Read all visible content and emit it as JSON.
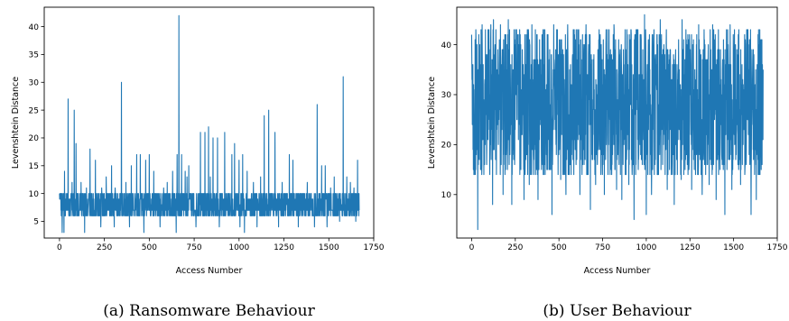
{
  "chart_data": [
    {
      "type": "line",
      "caption": "(a) Ransomware Behaviour",
      "xlabel": "Access Number",
      "ylabel": "Levenshtein Distance",
      "xlim": [
        -85,
        1750
      ],
      "ylim": [
        2.0,
        43.5
      ],
      "xticks": [
        0,
        250,
        500,
        750,
        1000,
        1250,
        1500,
        1750
      ],
      "yticks": [
        5,
        10,
        15,
        20,
        25,
        30,
        35,
        40
      ],
      "color": "#1f77b4",
      "series": [
        {
          "n_points": 1670,
          "band": [
            6,
            10
          ],
          "spikes": [
            [
              3,
              10
            ],
            [
              15,
              3
            ],
            [
              28,
              14
            ],
            [
              48,
              27
            ],
            [
              70,
              12
            ],
            [
              82,
              25
            ],
            [
              92,
              19
            ],
            [
              120,
              12
            ],
            [
              150,
              11
            ],
            [
              170,
              18
            ],
            [
              200,
              16
            ],
            [
              215,
              10
            ],
            [
              235,
              11
            ],
            [
              260,
              13
            ],
            [
              290,
              15
            ],
            [
              310,
              11
            ],
            [
              345,
              30
            ],
            [
              370,
              12
            ],
            [
              400,
              15
            ],
            [
              430,
              17
            ],
            [
              450,
              17
            ],
            [
              480,
              16
            ],
            [
              500,
              17
            ],
            [
              525,
              14
            ],
            [
              560,
              12
            ],
            [
              580,
              11
            ],
            [
              600,
              12
            ],
            [
              630,
              14
            ],
            [
              655,
              17
            ],
            [
              665,
              42
            ],
            [
              680,
              17
            ],
            [
              700,
              14
            ],
            [
              710,
              13
            ],
            [
              720,
              15
            ],
            [
              760,
              16
            ],
            [
              785,
              21
            ],
            [
              810,
              21
            ],
            [
              830,
              22
            ],
            [
              840,
              13
            ],
            [
              855,
              20
            ],
            [
              880,
              20
            ],
            [
              890,
              15
            ],
            [
              920,
              21
            ],
            [
              960,
              17
            ],
            [
              975,
              19
            ],
            [
              1000,
              16
            ],
            [
              1020,
              17
            ],
            [
              1045,
              14
            ],
            [
              1080,
              12
            ],
            [
              1100,
              13
            ],
            [
              1120,
              13
            ],
            [
              1140,
              24
            ],
            [
              1165,
              25
            ],
            [
              1200,
              21
            ],
            [
              1240,
              12
            ],
            [
              1280,
              17
            ],
            [
              1300,
              16
            ],
            [
              1340,
              10
            ],
            [
              1380,
              12
            ],
            [
              1400,
              10
            ],
            [
              1435,
              26
            ],
            [
              1460,
              15
            ],
            [
              1480,
              15
            ],
            [
              1510,
              11
            ],
            [
              1530,
              13
            ],
            [
              1555,
              10
            ],
            [
              1580,
              31
            ],
            [
              1600,
              13
            ],
            [
              1620,
              12
            ],
            [
              1640,
              11
            ],
            [
              1660,
              16
            ]
          ],
          "dips": [
            [
              25,
              3
            ],
            [
              140,
              3
            ],
            [
              230,
              4
            ],
            [
              305,
              4
            ],
            [
              390,
              4
            ],
            [
              470,
              3
            ],
            [
              560,
              4
            ],
            [
              650,
              3
            ],
            [
              760,
              4
            ],
            [
              890,
              4
            ],
            [
              1005,
              4
            ],
            [
              1030,
              3
            ],
            [
              1100,
              4
            ],
            [
              1220,
              4
            ],
            [
              1330,
              4
            ],
            [
              1420,
              4
            ],
            [
              1490,
              4
            ],
            [
              1560,
              5
            ],
            [
              1650,
              5
            ]
          ]
        }
      ]
    },
    {
      "type": "line",
      "caption": "(b) User Behaviour",
      "xlabel": "Access Number",
      "ylabel": "Levenshtein Distance",
      "xlim": [
        -85,
        1750
      ],
      "ylim": [
        1.3,
        47.5
      ],
      "xticks": [
        0,
        250,
        500,
        750,
        1000,
        1250,
        1500,
        1750
      ],
      "yticks": [
        10,
        20,
        30,
        40
      ],
      "color": "#1f77b4",
      "series": [
        {
          "n_points": 1670,
          "band": [
            14,
            43
          ],
          "spikes": [
            [
              0,
              42
            ],
            [
              60,
              44
            ],
            [
              110,
              44
            ],
            [
              125,
              45
            ],
            [
              165,
              44
            ],
            [
              210,
              45
            ],
            [
              300,
              44
            ],
            [
              345,
              44
            ],
            [
              410,
              43
            ],
            [
              470,
              44
            ],
            [
              550,
              44
            ],
            [
              655,
              44
            ],
            [
              730,
              43
            ],
            [
              815,
              44
            ],
            [
              990,
              46
            ],
            [
              1080,
              45
            ],
            [
              1205,
              45
            ],
            [
              1300,
              44
            ],
            [
              1380,
              44
            ],
            [
              1480,
              44
            ],
            [
              1600,
              44
            ],
            [
              1640,
              42
            ],
            [
              1660,
              40
            ]
          ],
          "dips": [
            [
              15,
              14
            ],
            [
              35,
              3
            ],
            [
              70,
              14
            ],
            [
              120,
              8
            ],
            [
              180,
              10
            ],
            [
              230,
              8
            ],
            [
              300,
              9
            ],
            [
              330,
              12
            ],
            [
              380,
              9
            ],
            [
              410,
              14
            ],
            [
              460,
              6
            ],
            [
              510,
              13
            ],
            [
              540,
              10
            ],
            [
              570,
              14
            ],
            [
              620,
              10
            ],
            [
              680,
              7
            ],
            [
              710,
              12
            ],
            [
              760,
              10
            ],
            [
              830,
              11
            ],
            [
              860,
              9
            ],
            [
              900,
              12
            ],
            [
              930,
              5
            ],
            [
              1000,
              6
            ],
            [
              1030,
              10
            ],
            [
              1070,
              14
            ],
            [
              1120,
              11
            ],
            [
              1160,
              8
            ],
            [
              1200,
              13
            ],
            [
              1260,
              11
            ],
            [
              1320,
              10
            ],
            [
              1360,
              12
            ],
            [
              1400,
              9
            ],
            [
              1450,
              6
            ],
            [
              1490,
              11
            ],
            [
              1540,
              12
            ],
            [
              1600,
              6
            ],
            [
              1630,
              9
            ],
            [
              1660,
              17
            ]
          ]
        }
      ]
    }
  ]
}
